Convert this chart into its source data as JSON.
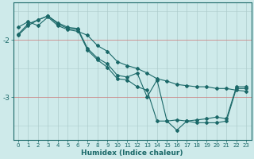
{
  "xlabel": "Humidex (Indice chaleur)",
  "bg_color": "#ceeaea",
  "grid_color": "#aecccc",
  "hgrid_color": "#cc8888",
  "line_color": "#1a6868",
  "x": [
    0,
    1,
    2,
    3,
    4,
    5,
    6,
    7,
    8,
    9,
    10,
    11,
    12,
    13,
    14,
    15,
    16,
    17,
    18,
    19,
    20,
    21,
    22,
    23
  ],
  "line1": [
    -1.78,
    -1.68,
    -1.75,
    -1.6,
    -1.75,
    -1.82,
    -1.85,
    -1.92,
    -2.1,
    -2.2,
    -2.38,
    -2.45,
    -2.5,
    -2.58,
    -2.68,
    -2.72,
    -2.78,
    -2.8,
    -2.82,
    -2.82,
    -2.85,
    -2.85,
    -2.88,
    -2.9
  ],
  "line2": [
    -1.9,
    -1.72,
    -1.65,
    -1.58,
    -1.7,
    -1.78,
    -1.8,
    -2.15,
    -2.32,
    -2.42,
    -2.62,
    -2.65,
    -2.58,
    -3.0,
    -2.7,
    -3.42,
    -3.4,
    -3.42,
    -3.4,
    -3.38,
    -3.35,
    -3.38,
    -2.82,
    -2.82
  ],
  "line3": [
    -1.92,
    -1.75,
    -1.65,
    -1.58,
    -1.72,
    -1.8,
    -1.82,
    -2.18,
    -2.35,
    -2.48,
    -2.68,
    -2.7,
    -2.82,
    -2.88,
    -3.42,
    -3.42,
    -3.58,
    -3.42,
    -3.45,
    -3.45,
    -3.45,
    -3.42,
    -2.85,
    -2.85
  ],
  "xlim": [
    -0.5,
    23.5
  ],
  "ylim": [
    -3.75,
    -1.35
  ],
  "yticks": [
    -3.0,
    -2.0
  ],
  "ytick_labels": [
    "-3",
    "-2"
  ],
  "marker": "D",
  "markersize": 2.0,
  "linewidth": 0.8
}
